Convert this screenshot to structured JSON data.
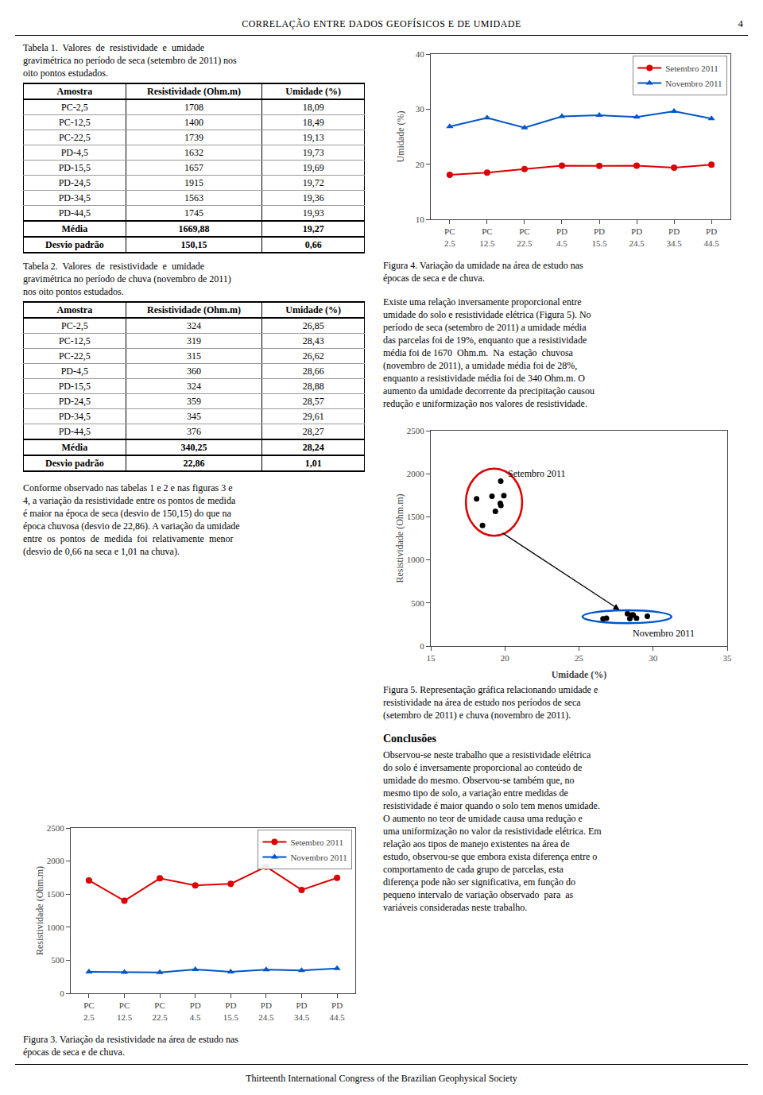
{
  "page": {
    "title": "CORRELAÇÃO ENTRE DADOS GEOFÍSICOS E DE UMIDADE",
    "number": "4",
    "footer": "Thirteenth International Congress of the Brazilian Geophysical Society"
  },
  "tables": [
    {
      "caption_lines": [
        "Tabela 1.  Valores  de  resistividade  e  umidade",
        "gravimétrica no período de seca (setembro de 2011) nos",
        "oito pontos estudados."
      ],
      "headers": [
        "Amostra",
        "Resistividade (Ohm.m)",
        "Umidade (%)"
      ],
      "rows": [
        [
          "PC-2,5",
          "1708",
          "18,09"
        ],
        [
          "PC-12,5",
          "1400",
          "18,49"
        ],
        [
          "PC-22,5",
          "1739",
          "19,13"
        ],
        [
          "PD-4,5",
          "1632",
          "19,73"
        ],
        [
          "PD-15,5",
          "1657",
          "19,69"
        ],
        [
          "PD-24,5",
          "1915",
          "19,72"
        ],
        [
          "PD-34,5",
          "1563",
          "19,36"
        ],
        [
          "PD-44,5",
          "1745",
          "19,93"
        ]
      ],
      "stat_rows": [
        [
          "Média",
          "1669,88",
          "19,27"
        ],
        [
          "Desvio padrão",
          "150,15",
          "0,66"
        ]
      ]
    },
    {
      "caption_lines": [
        "Tabela 2.  Valores  de  resistividade  e  umidade",
        "gravimétrica no período de chuva (novembro de 2011)",
        "nos oito pontos estudados."
      ],
      "headers": [
        "Amostra",
        "Resistividade (Ohm.m)",
        "Umidade (%)"
      ],
      "rows": [
        [
          "PC-2,5",
          "324",
          "26,85"
        ],
        [
          "PC-12,5",
          "319",
          "28,43"
        ],
        [
          "PC-22,5",
          "315",
          "26,62"
        ],
        [
          "PD-4,5",
          "360",
          "28,66"
        ],
        [
          "PD-15,5",
          "324",
          "28,88"
        ],
        [
          "PD-24,5",
          "359",
          "28,57"
        ],
        [
          "PD-34,5",
          "345",
          "29,61"
        ],
        [
          "PD-44,5",
          "376",
          "28,27"
        ]
      ],
      "stat_rows": [
        [
          "Média",
          "340,25",
          "28,24"
        ],
        [
          "Desvio padrão",
          "22,86",
          "1,01"
        ]
      ]
    }
  ],
  "body_text_lines": [
    "Conforme observado nas tabelas 1 e 2 e nas figuras 3 e",
    "4, a variação da resistividade entre os pontos de medida",
    "é maior na época de seca (desvio de 150,15) do que na",
    "época chuvosa (desvio de 22,86). A variação da umidade",
    "entre  os  pontos  de  medida  foi  relativamente  menor",
    "(desvio de 0,66 na seca e 1,01 na chuva)."
  ],
  "right_text_lines": [
    "Existe uma relação inversamente proporcional entre",
    "umidade do solo e resistividade elétrica (Figura 5). No",
    "período de seca (setembro de 2011) a umidade média",
    "das parcelas foi de 19%, enquanto que a resistividade",
    "média foi de 1670  Ohm.m.  Na  estação  chuvosa",
    "(novembro de 2011), a umidade média foi de 28%,",
    "enquanto a resistividade média foi de 340 Ohm.m. O",
    "aumento da umidade decorrente da precipitação causou",
    "redução e uniformização nos valores de resistividade."
  ],
  "conclusions": {
    "title": "Conclusões",
    "lines": [
      "Observou-se neste trabalho que a resistividade elétrica",
      "do solo é inversamente proporcional ao conteúdo de",
      "umidade do mesmo. Observou-se também que, no",
      "mesmo tipo de solo, a variação entre medidas de",
      "resistividade é maior quando o solo tem menos umidade.",
      "O aumento no teor de umidade causa uma redução e",
      "uma uniformização no valor da resistividade elétrica. Em",
      "relação aos tipos de manejo existentes na área de",
      "estudo, observou-se que embora exista diferença entre o",
      "comportamento de cada grupo de parcelas, esta",
      "diferença pode não ser significativa, em função do",
      "pequeno intervalo de variação observado  para  as",
      "variáveis consideradas neste trabalho."
    ]
  },
  "chart_data": [
    {
      "type": "line",
      "caption": [
        "Figura 3. Variação da resistividade na área de estudo nas",
        "épocas de seca e de chuva."
      ],
      "ylabel": "Resistividade (Ohm.m)",
      "categories": [
        "PC\n2.5",
        "PC\n12.5",
        "PC\n22.5",
        "PD\n4.5",
        "PD\n15.5",
        "PD\n24.5",
        "PD\n34.5",
        "PD\n44.5"
      ],
      "series": [
        {
          "name": "Setembro 2011",
          "color": "#dd0000",
          "marker": "circle",
          "values": [
            1708,
            1400,
            1739,
            1632,
            1657,
            1915,
            1563,
            1745
          ]
        },
        {
          "name": "Novembro 2011",
          "color": "#0055cc",
          "marker": "triangle-up",
          "values": [
            324,
            319,
            315,
            360,
            324,
            359,
            345,
            376
          ]
        }
      ],
      "ylim": [
        0,
        2500
      ],
      "yticks": [
        0,
        500,
        1000,
        1500,
        2000,
        2500
      ],
      "legend": "upper right",
      "grid": false
    },
    {
      "type": "line",
      "caption": [
        "Figura 4. Variação da umidade na área de estudo nas",
        "épocas de seca e de chuva."
      ],
      "ylabel": "Umidade (%)",
      "categories": [
        "PC\n2.5",
        "PC\n12.5",
        "PC\n22.5",
        "PD\n4.5",
        "PD\n15.5",
        "PD\n24.5",
        "PD\n34.5",
        "PD\n44.5"
      ],
      "series": [
        {
          "name": "Setembro 2011",
          "color": "#dd0000",
          "marker": "circle",
          "values": [
            18.09,
            18.49,
            19.13,
            19.73,
            19.69,
            19.72,
            19.36,
            19.93
          ]
        },
        {
          "name": "Novembro 2011",
          "color": "#0055cc",
          "marker": "triangle-up",
          "values": [
            26.85,
            28.43,
            26.62,
            28.66,
            28.88,
            28.57,
            29.61,
            28.27
          ]
        }
      ],
      "ylim": [
        10,
        40
      ],
      "yticks": [
        10,
        20,
        30,
        40
      ],
      "legend": "upper right",
      "grid": false
    },
    {
      "type": "scatter",
      "caption": [
        "Figura 5. Representação gráfica relacionando umidade e",
        "resistividade na área de estudo nos períodos de seca",
        "(setembro de 2011) e chuva (novembro de 2011)."
      ],
      "xlabel": "Umidade (%)",
      "ylabel": "Resistividade (Ohm.m)",
      "series": [
        {
          "name": "Setembro 2011",
          "color": "black",
          "marker": "circle",
          "x": [
            18.09,
            18.49,
            19.13,
            19.73,
            19.69,
            19.72,
            19.36,
            19.93
          ],
          "values": [
            1708,
            1400,
            1739,
            1632,
            1657,
            1915,
            1563,
            1745
          ],
          "ellipse": {
            "center": [
              19.2675,
              1669.875
            ],
            "width": 3.8,
            "height": 780,
            "color": "#dd0000"
          }
        },
        {
          "name": "Novembro 2011",
          "color": "black",
          "marker": "circle",
          "x": [
            26.85,
            28.43,
            26.62,
            28.66,
            28.88,
            28.57,
            29.61,
            28.27
          ],
          "values": [
            324,
            319,
            315,
            360,
            324,
            359,
            345,
            376
          ],
          "ellipse": {
            "center": [
              28.23625,
              340.25
            ],
            "width": 6.0,
            "height": 150,
            "color": "#0055cc"
          }
        }
      ],
      "xlim": [
        15,
        35
      ],
      "xticks": [
        15,
        20,
        25,
        30,
        35
      ],
      "ylim": [
        0,
        2500
      ],
      "yticks": [
        0,
        500,
        1000,
        1500,
        2000,
        2500
      ],
      "grid": false
    }
  ]
}
